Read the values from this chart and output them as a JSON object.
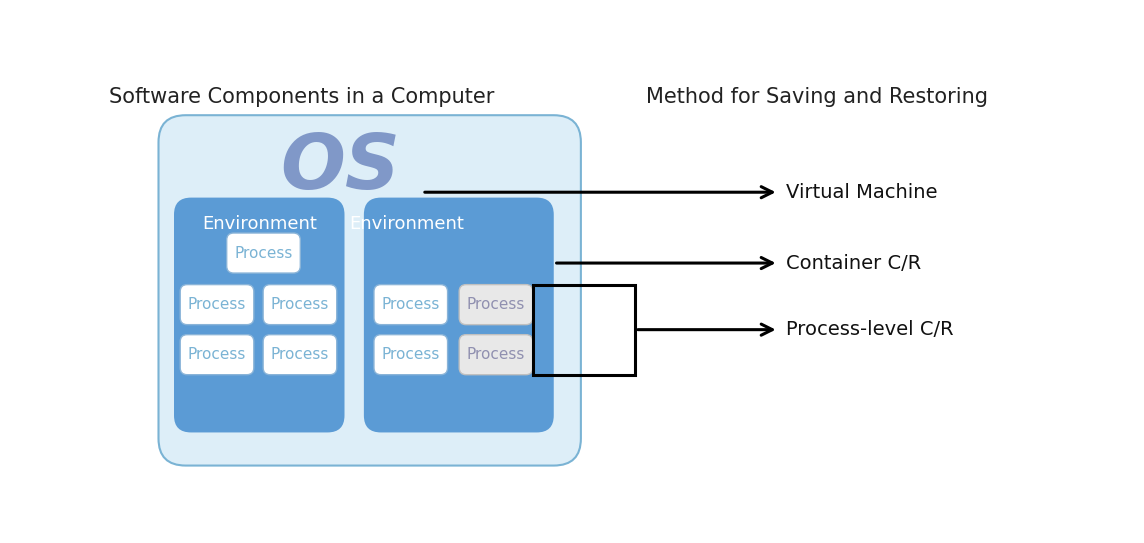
{
  "title_left": "Software Components in a Computer",
  "title_right": "Method for Saving and Restoring",
  "title_fontsize": 15,
  "bg_color": "#ffffff",
  "os_box_color": "#ddeef8",
  "os_box_edge": "#7ab3d4",
  "env_box_color": "#5b9bd5",
  "env_box_edge": "#5b9bd5",
  "process_white_color": "#ffffff",
  "process_white_edge": "#8ab4d8",
  "process_gray_color": "#e8e8e8",
  "process_gray_edge": "#c0c0c0",
  "os_text_color": "#8098c8",
  "env_text_color": "#ffffff",
  "process_white_text": "#7ab3d4",
  "process_gray_text": "#9090b0",
  "arrow_color": "#000000",
  "label_vm": "Virtual Machine",
  "label_container": "Container C/R",
  "label_process": "Process-level C/R",
  "label_os": "OS",
  "label_env": "Environment",
  "label_process_text": "Process"
}
